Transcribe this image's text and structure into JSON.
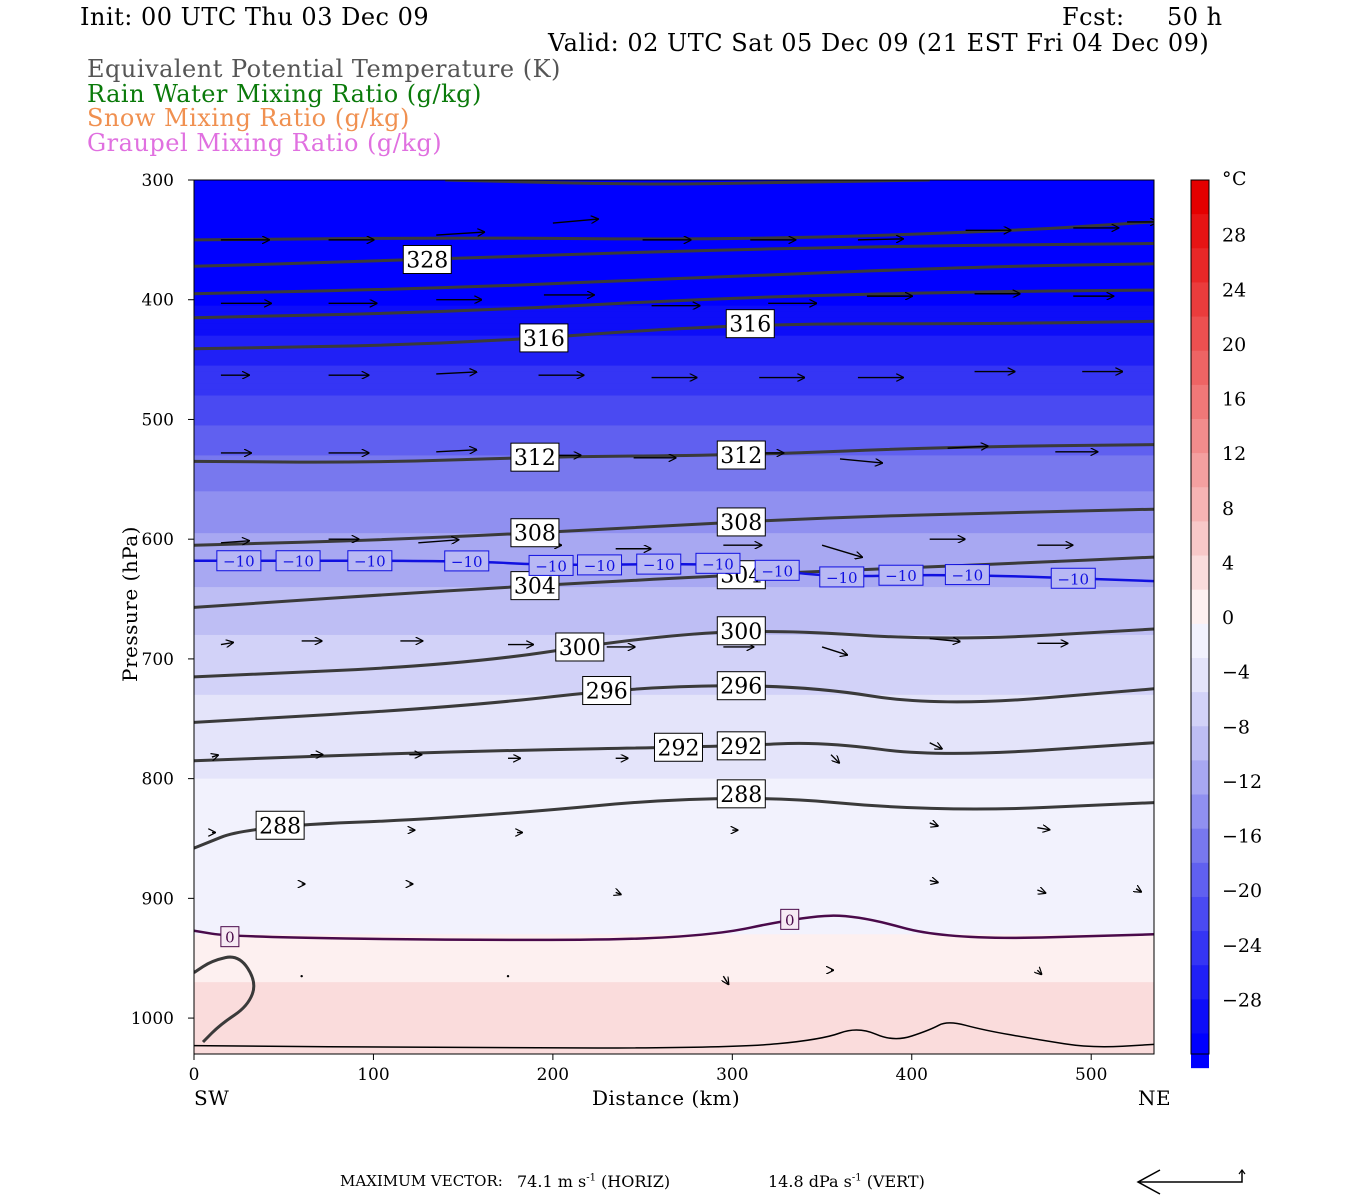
{
  "header": {
    "init": "Init: 00 UTC Thu 03 Dec 09",
    "fcst_label": "Fcst:",
    "fcst_value": "50 h",
    "valid": "Valid: 02 UTC Sat 05 Dec 09 (21 EST Fri 04 Dec 09)"
  },
  "legend": [
    {
      "text": "Equivalent Potential Temperature (K)",
      "color": "#555555"
    },
    {
      "text": "Rain Water Mixing Ratio (g/kg)",
      "color": "#0a7a0a"
    },
    {
      "text": "Snow Mixing Ratio (g/kg)",
      "color": "#f09050"
    },
    {
      "text": "Graupel Mixing Ratio (g/kg)",
      "color": "#e070e0"
    }
  ],
  "footer": {
    "max_vector_label": "MAXIMUM VECTOR:",
    "horiz": "74.1 m s",
    "horiz_unit": "(HORIZ)",
    "vert": "14.8 dPa s",
    "vert_unit": "(VERT)",
    "exponent": "-1"
  },
  "chart_data": {
    "type": "heatmap",
    "title": "",
    "xlabel": "Distance (km)",
    "ylabel": "Pressure (hPa)",
    "xlim": [
      0,
      535
    ],
    "ylim": [
      300,
      1030
    ],
    "x_ticks": [
      0,
      100,
      200,
      300,
      400,
      500
    ],
    "y_ticks": [
      300,
      400,
      500,
      600,
      700,
      800,
      900,
      1000
    ],
    "x_end_labels": {
      "left": "SW",
      "right": "NE"
    },
    "colorbar": {
      "unit": "°C",
      "range": [
        -32,
        32
      ],
      "tick_values": [
        28,
        24,
        20,
        16,
        12,
        8,
        4,
        0,
        -4,
        -8,
        -12,
        -16,
        -20,
        -24,
        -28
      ],
      "tick_labels": [
        "28",
        "24",
        "20",
        "16",
        "12",
        "8",
        "4",
        "0",
        "−4",
        "−8",
        "−12",
        "−16",
        "−20",
        "−24",
        "−28"
      ],
      "colors_cold": [
        "#0000ff",
        "#0d0df8",
        "#2020f6",
        "#3535f4",
        "#4a4af2",
        "#6060f0",
        "#7878ee",
        "#9090f0",
        "#a8a8f2",
        "#bebef4",
        "#d2d2f8",
        "#e4e4fa",
        "#f2f2fd"
      ],
      "colors_warm": [
        "#fdf0f0",
        "#fadcdc",
        "#f8c8c8",
        "#f6b4b4",
        "#f4a0a0",
        "#f28c8c",
        "#f07878",
        "#ee6464",
        "#ec5050",
        "#ea3c3c",
        "#e82828",
        "#e61414",
        "#e40000"
      ]
    },
    "temperature_field": [
      {
        "p": 300,
        "t": -32
      },
      {
        "p": 400,
        "t": -30
      },
      {
        "p": 460,
        "t": -24
      },
      {
        "p": 520,
        "t": -18
      },
      {
        "p": 580,
        "t": -13
      },
      {
        "p": 630,
        "t": -10
      },
      {
        "p": 700,
        "t": -6
      },
      {
        "p": 760,
        "t": -3
      },
      {
        "p": 840,
        "t": -1
      },
      {
        "p": 920,
        "t": -1.2
      },
      {
        "p": 935,
        "t": 0.5
      },
      {
        "p": 980,
        "t": 3
      },
      {
        "p": 1030,
        "t": 5
      }
    ],
    "theta_e_contours": [
      {
        "label": "",
        "points": [
          [
            140,
            300
          ],
          [
            250,
            304
          ],
          [
            330,
            302
          ],
          [
            410,
            300
          ]
        ]
      },
      {
        "label": "",
        "points": [
          [
            0,
            350
          ],
          [
            150,
            348
          ],
          [
            300,
            350
          ],
          [
            450,
            343
          ],
          [
            535,
            335
          ]
        ]
      },
      {
        "label": "328",
        "points": [
          [
            0,
            372
          ],
          [
            100,
            368
          ],
          [
            250,
            360
          ],
          [
            400,
            355
          ],
          [
            535,
            353
          ]
        ]
      },
      {
        "label": "",
        "points": [
          [
            0,
            395
          ],
          [
            150,
            390
          ],
          [
            300,
            380
          ],
          [
            450,
            372
          ],
          [
            535,
            370
          ]
        ]
      },
      {
        "label": "",
        "points": [
          [
            0,
            415
          ],
          [
            150,
            410
          ],
          [
            300,
            398
          ],
          [
            450,
            393
          ],
          [
            535,
            392
          ]
        ]
      },
      {
        "label": "316",
        "points": [
          [
            0,
            441
          ],
          [
            150,
            437
          ],
          [
            300,
            420
          ],
          [
            450,
            420
          ],
          [
            535,
            418
          ]
        ]
      },
      {
        "label": "312",
        "points": [
          [
            0,
            535
          ],
          [
            100,
            536
          ],
          [
            200,
            531
          ],
          [
            300,
            530
          ],
          [
            420,
            523
          ],
          [
            535,
            521
          ]
        ]
      },
      {
        "label": "308",
        "points": [
          [
            0,
            605
          ],
          [
            120,
            600
          ],
          [
            250,
            590
          ],
          [
            350,
            582
          ],
          [
            450,
            578
          ],
          [
            535,
            575
          ]
        ]
      },
      {
        "label": "304",
        "points": [
          [
            0,
            657
          ],
          [
            150,
            642
          ],
          [
            300,
            630
          ],
          [
            380,
            625
          ],
          [
            460,
            620
          ],
          [
            535,
            615
          ]
        ]
      },
      {
        "label": "300",
        "points": [
          [
            0,
            715
          ],
          [
            150,
            705
          ],
          [
            250,
            682
          ],
          [
            320,
            675
          ],
          [
            420,
            685
          ],
          [
            535,
            675
          ]
        ]
      },
      {
        "label": "296",
        "points": [
          [
            0,
            753
          ],
          [
            150,
            740
          ],
          [
            250,
            723
          ],
          [
            340,
            722
          ],
          [
            415,
            740
          ],
          [
            535,
            725
          ]
        ]
      },
      {
        "label": "292",
        "points": [
          [
            0,
            785
          ],
          [
            150,
            777
          ],
          [
            300,
            773
          ],
          [
            350,
            769
          ],
          [
            415,
            782
          ],
          [
            535,
            770
          ]
        ]
      },
      {
        "label": "288",
        "points": [
          [
            0,
            858
          ],
          [
            30,
            840
          ],
          [
            150,
            833
          ],
          [
            300,
            812
          ],
          [
            415,
            828
          ],
          [
            535,
            820
          ]
        ]
      },
      {
        "label": "",
        "points": [
          [
            5,
            1020
          ],
          [
            15,
            1005
          ],
          [
            30,
            990
          ],
          [
            35,
            970
          ],
          [
            25,
            947
          ],
          [
            10,
            952
          ],
          [
            0,
            962
          ]
        ]
      }
    ],
    "isotherms": [
      {
        "t": -10,
        "points": [
          [
            0,
            618
          ],
          [
            150,
            618
          ],
          [
            200,
            622
          ],
          [
            300,
            620
          ],
          [
            350,
            632
          ],
          [
            420,
            629
          ],
          [
            535,
            635
          ]
        ],
        "labels_x": [
          25,
          58,
          98,
          152,
          199,
          226,
          259,
          292,
          325,
          361,
          394,
          431,
          490
        ]
      },
      {
        "t": 0,
        "points": [
          [
            0,
            927
          ],
          [
            20,
            932
          ],
          [
            150,
            935
          ],
          [
            280,
            934
          ],
          [
            340,
            915
          ],
          [
            370,
            914
          ],
          [
            420,
            935
          ],
          [
            535,
            930
          ]
        ],
        "labels_x": [
          20,
          332
        ]
      }
    ],
    "surface_line": [
      [
        0,
        1023
      ],
      [
        150,
        1025
      ],
      [
        300,
        1025
      ],
      [
        350,
        1018
      ],
      [
        370,
        1007
      ],
      [
        390,
        1020
      ],
      [
        410,
        1010
      ],
      [
        420,
        1002
      ],
      [
        440,
        1010
      ],
      [
        470,
        1018
      ],
      [
        500,
        1025
      ],
      [
        535,
        1022
      ]
    ],
    "wind_vectors": [
      {
        "x": 15,
        "p": 350,
        "dx": 48,
        "dp": 0
      },
      {
        "x": 75,
        "p": 350,
        "dx": 45,
        "dp": 0
      },
      {
        "x": 135,
        "p": 346,
        "dx": 48,
        "dp": -3
      },
      {
        "x": 200,
        "p": 336,
        "dx": 45,
        "dp": -4
      },
      {
        "x": 250,
        "p": 350,
        "dx": 48,
        "dp": 0
      },
      {
        "x": 310,
        "p": 350,
        "dx": 45,
        "dp": 0
      },
      {
        "x": 370,
        "p": 350,
        "dx": 45,
        "dp": -1
      },
      {
        "x": 430,
        "p": 342,
        "dx": 45,
        "dp": 0
      },
      {
        "x": 490,
        "p": 340,
        "dx": 45,
        "dp": 0
      },
      {
        "x": 520,
        "p": 335,
        "dx": 30,
        "dp": 0
      },
      {
        "x": 15,
        "p": 403,
        "dx": 50,
        "dp": 0
      },
      {
        "x": 75,
        "p": 403,
        "dx": 48,
        "dp": 0
      },
      {
        "x": 135,
        "p": 400,
        "dx": 45,
        "dp": 0
      },
      {
        "x": 195,
        "p": 396,
        "dx": 50,
        "dp": 0
      },
      {
        "x": 255,
        "p": 405,
        "dx": 48,
        "dp": 0
      },
      {
        "x": 320,
        "p": 403,
        "dx": 48,
        "dp": 0
      },
      {
        "x": 375,
        "p": 397,
        "dx": 45,
        "dp": 0
      },
      {
        "x": 435,
        "p": 395,
        "dx": 45,
        "dp": 0
      },
      {
        "x": 490,
        "p": 397,
        "dx": 40,
        "dp": 0
      },
      {
        "x": 15,
        "p": 463,
        "dx": 28,
        "dp": 0
      },
      {
        "x": 75,
        "p": 463,
        "dx": 40,
        "dp": 0
      },
      {
        "x": 135,
        "p": 462,
        "dx": 40,
        "dp": -2
      },
      {
        "x": 192,
        "p": 463,
        "dx": 45,
        "dp": 0
      },
      {
        "x": 255,
        "p": 465,
        "dx": 45,
        "dp": 0
      },
      {
        "x": 315,
        "p": 465,
        "dx": 45,
        "dp": 0
      },
      {
        "x": 370,
        "p": 465,
        "dx": 45,
        "dp": 0
      },
      {
        "x": 435,
        "p": 460,
        "dx": 40,
        "dp": 0
      },
      {
        "x": 495,
        "p": 460,
        "dx": 40,
        "dp": 0
      },
      {
        "x": 15,
        "p": 528,
        "dx": 30,
        "dp": 0
      },
      {
        "x": 75,
        "p": 528,
        "dx": 40,
        "dp": 0
      },
      {
        "x": 135,
        "p": 527,
        "dx": 40,
        "dp": -2
      },
      {
        "x": 192,
        "p": 530,
        "dx": 42,
        "dp": 0
      },
      {
        "x": 245,
        "p": 532,
        "dx": 42,
        "dp": 0
      },
      {
        "x": 305,
        "p": 528,
        "dx": 42,
        "dp": 0
      },
      {
        "x": 360,
        "p": 533,
        "dx": 42,
        "dp": 4
      },
      {
        "x": 420,
        "p": 524,
        "dx": 40,
        "dp": -2
      },
      {
        "x": 480,
        "p": 527,
        "dx": 42,
        "dp": 0
      },
      {
        "x": 15,
        "p": 603,
        "dx": 28,
        "dp": -2
      },
      {
        "x": 75,
        "p": 600,
        "dx": 30,
        "dp": 0
      },
      {
        "x": 125,
        "p": 603,
        "dx": 40,
        "dp": -3
      },
      {
        "x": 185,
        "p": 605,
        "dx": 35,
        "dp": 0
      },
      {
        "x": 235,
        "p": 608,
        "dx": 35,
        "dp": 0
      },
      {
        "x": 295,
        "p": 605,
        "dx": 38,
        "dp": 0
      },
      {
        "x": 350,
        "p": 605,
        "dx": 40,
        "dp": 12
      },
      {
        "x": 410,
        "p": 600,
        "dx": 35,
        "dp": 0
      },
      {
        "x": 470,
        "p": 605,
        "dx": 35,
        "dp": 0
      },
      {
        "x": 15,
        "p": 688,
        "dx": 12,
        "dp": -2
      },
      {
        "x": 60,
        "p": 685,
        "dx": 20,
        "dp": 0
      },
      {
        "x": 115,
        "p": 685,
        "dx": 22,
        "dp": 0
      },
      {
        "x": 175,
        "p": 688,
        "dx": 25,
        "dp": 0
      },
      {
        "x": 230,
        "p": 690,
        "dx": 28,
        "dp": 0
      },
      {
        "x": 295,
        "p": 690,
        "dx": 30,
        "dp": 0
      },
      {
        "x": 350,
        "p": 690,
        "dx": 25,
        "dp": 8
      },
      {
        "x": 410,
        "p": 683,
        "dx": 30,
        "dp": 3
      },
      {
        "x": 470,
        "p": 687,
        "dx": 30,
        "dp": 0
      },
      {
        "x": 10,
        "p": 782,
        "dx": 6,
        "dp": -2
      },
      {
        "x": 65,
        "p": 780,
        "dx": 12,
        "dp": 0
      },
      {
        "x": 120,
        "p": 780,
        "dx": 12,
        "dp": 0
      },
      {
        "x": 175,
        "p": 783,
        "dx": 12,
        "dp": 0
      },
      {
        "x": 235,
        "p": 783,
        "dx": 12,
        "dp": 0
      },
      {
        "x": 300,
        "p": 780,
        "dx": 18,
        "dp": 0
      },
      {
        "x": 355,
        "p": 780,
        "dx": 8,
        "dp": 8
      },
      {
        "x": 410,
        "p": 770,
        "dx": 12,
        "dp": 6
      },
      {
        "x": 10,
        "p": 845,
        "dx": 3,
        "dp": 0
      },
      {
        "x": 120,
        "p": 843,
        "dx": 5,
        "dp": 0
      },
      {
        "x": 180,
        "p": 845,
        "dx": 5,
        "dp": 0
      },
      {
        "x": 300,
        "p": 843,
        "dx": 5,
        "dp": 0
      },
      {
        "x": 410,
        "p": 837,
        "dx": 8,
        "dp": 3
      },
      {
        "x": 470,
        "p": 841,
        "dx": 12,
        "dp": 2
      },
      {
        "x": 60,
        "p": 888,
        "dx": 3,
        "dp": 0
      },
      {
        "x": 120,
        "p": 888,
        "dx": 3,
        "dp": 0
      },
      {
        "x": 235,
        "p": 895,
        "dx": 5,
        "dp": 2
      },
      {
        "x": 410,
        "p": 885,
        "dx": 8,
        "dp": 2
      },
      {
        "x": 470,
        "p": 893,
        "dx": 8,
        "dp": 3
      },
      {
        "x": 525,
        "p": 892,
        "dx": 5,
        "dp": 3
      },
      {
        "x": 60,
        "p": 965,
        "dx": 0,
        "dp": 0
      },
      {
        "x": 175,
        "p": 965,
        "dx": 0,
        "dp": 0
      },
      {
        "x": 295,
        "p": 965,
        "dx": 5,
        "dp": 8
      },
      {
        "x": 355,
        "p": 960,
        "dx": 2,
        "dp": 0
      },
      {
        "x": 470,
        "p": 960,
        "dx": 4,
        "dp": 4
      }
    ]
  }
}
